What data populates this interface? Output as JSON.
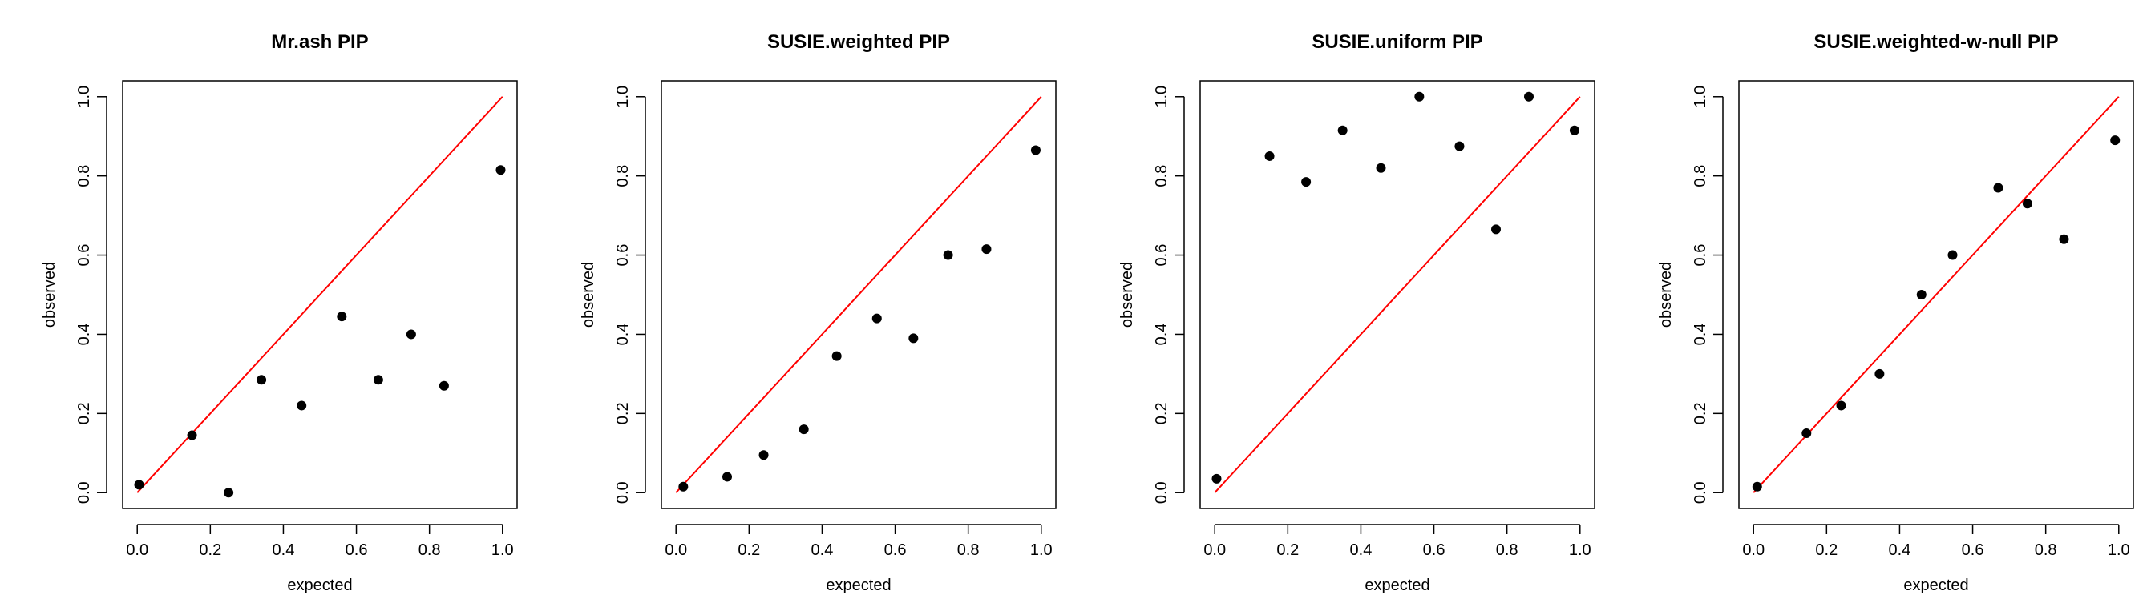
{
  "chart_data": [
    {
      "type": "scatter",
      "title": "Mr.ash PIP",
      "xlabel": "expected",
      "ylabel": "observed",
      "xlim": [
        0,
        1
      ],
      "ylim": [
        0,
        1
      ],
      "xticks": [
        "0.0",
        "0.2",
        "0.4",
        "0.6",
        "0.8",
        "1.0"
      ],
      "yticks": [
        "0.0",
        "0.2",
        "0.4",
        "0.6",
        "0.8",
        "1.0"
      ],
      "reference_line": {
        "from": [
          0,
          0
        ],
        "to": [
          1,
          1
        ],
        "color": "#ff0000"
      },
      "point_color": "#000000",
      "grid": false,
      "x": [
        0.005,
        0.15,
        0.25,
        0.34,
        0.45,
        0.56,
        0.66,
        0.75,
        0.84,
        0.995
      ],
      "y": [
        0.02,
        0.145,
        0.0,
        0.285,
        0.22,
        0.445,
        0.285,
        0.4,
        0.27,
        0.815
      ]
    },
    {
      "type": "scatter",
      "title": "SUSIE.weighted PIP",
      "xlabel": "expected",
      "ylabel": "observed",
      "xlim": [
        0,
        1
      ],
      "ylim": [
        0,
        1
      ],
      "xticks": [
        "0.0",
        "0.2",
        "0.4",
        "0.6",
        "0.8",
        "1.0"
      ],
      "yticks": [
        "0.0",
        "0.2",
        "0.4",
        "0.6",
        "0.8",
        "1.0"
      ],
      "reference_line": {
        "from": [
          0,
          0
        ],
        "to": [
          1,
          1
        ],
        "color": "#ff0000"
      },
      "point_color": "#000000",
      "grid": false,
      "x": [
        0.02,
        0.14,
        0.24,
        0.35,
        0.44,
        0.55,
        0.65,
        0.745,
        0.85,
        0.985
      ],
      "y": [
        0.015,
        0.04,
        0.095,
        0.16,
        0.345,
        0.44,
        0.39,
        0.6,
        0.615,
        0.865
      ]
    },
    {
      "type": "scatter",
      "title": "SUSIE.uniform PIP",
      "xlabel": "expected",
      "ylabel": "observed",
      "xlim": [
        0,
        1
      ],
      "ylim": [
        0,
        1
      ],
      "xticks": [
        "0.0",
        "0.2",
        "0.4",
        "0.6",
        "0.8",
        "1.0"
      ],
      "yticks": [
        "0.0",
        "0.2",
        "0.4",
        "0.6",
        "0.8",
        "1.0"
      ],
      "reference_line": {
        "from": [
          0,
          0
        ],
        "to": [
          1,
          1
        ],
        "color": "#ff0000"
      },
      "point_color": "#000000",
      "grid": false,
      "x": [
        0.005,
        0.15,
        0.25,
        0.35,
        0.455,
        0.56,
        0.67,
        0.77,
        0.86,
        0.985
      ],
      "y": [
        0.035,
        0.85,
        0.785,
        0.915,
        0.82,
        1.0,
        0.875,
        0.665,
        1.0,
        0.915
      ]
    },
    {
      "type": "scatter",
      "title": "SUSIE.weighted-w-null PIP",
      "xlabel": "expected",
      "ylabel": "observed",
      "xlim": [
        0,
        1
      ],
      "ylim": [
        0,
        1
      ],
      "xticks": [
        "0.0",
        "0.2",
        "0.4",
        "0.6",
        "0.8",
        "1.0"
      ],
      "yticks": [
        "0.0",
        "0.2",
        "0.4",
        "0.6",
        "0.8",
        "1.0"
      ],
      "reference_line": {
        "from": [
          0,
          0
        ],
        "to": [
          1,
          1
        ],
        "color": "#ff0000"
      },
      "point_color": "#000000",
      "grid": false,
      "x": [
        0.01,
        0.145,
        0.24,
        0.345,
        0.46,
        0.545,
        0.67,
        0.75,
        0.85,
        0.99
      ],
      "y": [
        0.015,
        0.15,
        0.22,
        0.3,
        0.5,
        0.6,
        0.77,
        0.73,
        0.64,
        0.89
      ]
    }
  ]
}
